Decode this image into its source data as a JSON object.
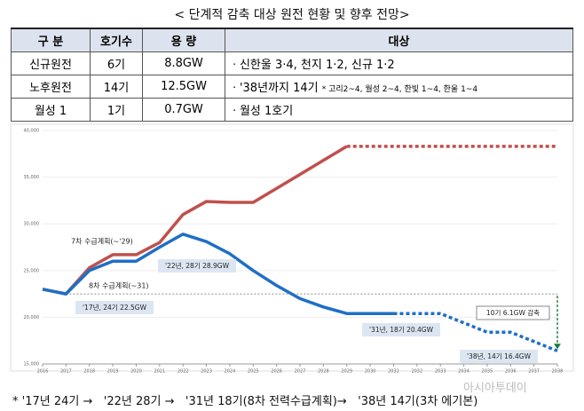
{
  "title": "< 단계적 감축 대상 원전 현황 및 향후 전망>",
  "table": {
    "header": [
      "구 분",
      "호기수",
      "용 량",
      "대상"
    ],
    "rows": [
      {
        "cells": [
          "신규원전",
          "6기",
          "8.8GW",
          "ㆍ신한울 3·4, 천지 1·2, 신규 1·2"
        ]
      },
      {
        "cells": [
          "노후원전",
          "14기",
          "12.5GW",
          "ㆍ'38년까지 14기"
        ],
        "note": "* 고리2~4, 월성 2~4, 한빛 1~4, 한울 1~4"
      },
      {
        "cells": [
          "월성 1",
          "1기",
          "0.7GW",
          "ㆍ월성 1호기"
        ]
      }
    ]
  },
  "chart_data": {
    "type": "line",
    "x": [
      2016,
      2017,
      2018,
      2019,
      2020,
      2021,
      2022,
      2023,
      2024,
      2025,
      2026,
      2027,
      2028,
      2029,
      2030,
      2031,
      2032,
      2033,
      2034,
      2035,
      2036,
      2037,
      2038
    ],
    "xlim": [
      2016,
      2038
    ],
    "xticks": [
      2016,
      2017,
      2018,
      2019,
      2020,
      2021,
      2022,
      2023,
      2024,
      2025,
      2026,
      2027,
      2028,
      2029,
      2030,
      2031,
      2032,
      2033,
      2034,
      2035,
      2036,
      2037,
      2038
    ],
    "ylim": [
      15000,
      40000
    ],
    "yticks": [
      {
        "value": 15000,
        "label": "15,000"
      },
      {
        "value": 20000,
        "label": "20,000"
      },
      {
        "value": 25000,
        "label": "25,000"
      },
      {
        "value": 30000,
        "label": "30,000"
      },
      {
        "value": 35000,
        "label": "35,000"
      },
      {
        "value": 40000,
        "label": "40,000"
      }
    ],
    "grid": true,
    "series": [
      {
        "name": "7차 수급계획(~'29)",
        "color": "#c0504d",
        "style": "solid",
        "values": [
          23000,
          22500,
          25300,
          26700,
          26700,
          28000,
          31000,
          32400,
          32300,
          32300,
          33800,
          35300,
          36800,
          38300,
          null,
          null,
          null,
          null,
          null,
          null,
          null,
          null,
          null
        ]
      },
      {
        "color": "#c0504d",
        "style": "dotted",
        "values": [
          null,
          null,
          null,
          null,
          null,
          null,
          null,
          null,
          null,
          null,
          null,
          null,
          null,
          38300,
          38300,
          38300,
          38300,
          38300,
          38300,
          38300,
          38300,
          38300,
          38300
        ]
      },
      {
        "name": "8차 수급계획(~31)",
        "color": "#1f6fc5",
        "style": "solid",
        "values": [
          23000,
          22500,
          25000,
          26000,
          26000,
          27500,
          28900,
          28100,
          26800,
          25000,
          23400,
          22000,
          21100,
          20400,
          20400,
          20400,
          null,
          null,
          null,
          null,
          null,
          null,
          null
        ]
      },
      {
        "color": "#1f6fc5",
        "style": "dotted",
        "values": [
          null,
          null,
          null,
          null,
          null,
          null,
          null,
          null,
          null,
          null,
          null,
          null,
          null,
          null,
          null,
          20400,
          20400,
          20400,
          19400,
          18400,
          18400,
          17400,
          16400
        ]
      }
    ],
    "annotations": [
      "'17년, 24기 22.5GW",
      "'22년, 28기 28.9GW",
      "'31년, 18기 20.4GW",
      "'38년, 14기 16.4GW",
      "10기 6.1GW 감축"
    ]
  },
  "footnote": "* '17년 24기 →   '22년 28기 →   '31년 18기(8차 전력수급계획)→   '38년 14기(3차 에기본)",
  "watermark": "아시아투데이"
}
